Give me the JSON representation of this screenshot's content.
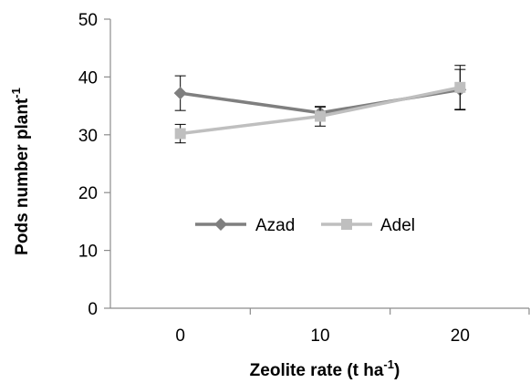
{
  "chart_data": {
    "type": "line",
    "x": [
      0,
      10,
      20
    ],
    "x_tick_labels": [
      "0",
      "10",
      "20"
    ],
    "ylim": [
      0,
      50
    ],
    "y_ticks": [
      0,
      10,
      20,
      30,
      40,
      50
    ],
    "y_tick_labels": [
      "0",
      "10",
      "20",
      "30",
      "40",
      "50"
    ],
    "xlabel_main": "Zeolite rate (t ha",
    "xlabel_sup": "-1",
    "xlabel_end": ")",
    "ylabel_main": "Pods number plant",
    "ylabel_sup": "-1",
    "legend_position": "center",
    "grid": false,
    "series": [
      {
        "name": "Azad",
        "marker": "diamond",
        "color": "#7f7f7f",
        "values": [
          37.2,
          33.8,
          37.8
        ],
        "error": [
          3.0,
          1.0,
          3.5
        ]
      },
      {
        "name": "Adel",
        "marker": "square",
        "color": "#bfbfbf",
        "values": [
          30.2,
          33.2,
          38.2
        ],
        "error": [
          1.6,
          1.7,
          3.8
        ]
      }
    ]
  }
}
